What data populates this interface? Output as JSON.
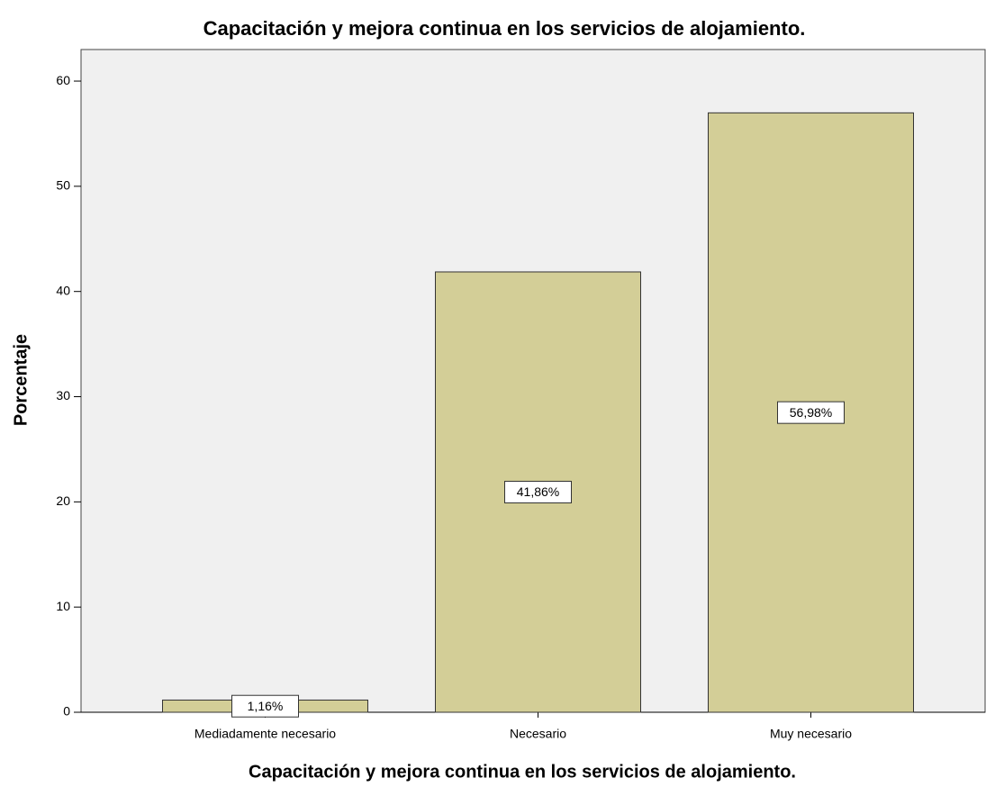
{
  "chart_data": {
    "type": "bar",
    "title": "Capacitación y mejora continua en los servicios de alojamiento.",
    "x_label": "Capacitación y mejora continua en los servicios de alojamiento.",
    "y_label": "Porcentaje",
    "categories": [
      "Mediadamente necesario",
      "Necesario",
      "Muy necesario"
    ],
    "values": [
      1.16,
      41.86,
      56.98
    ],
    "value_labels": [
      "1,16%",
      "41,86%",
      "56,98%"
    ],
    "color": "#d3ce97",
    "ylim": [
      0,
      63
    ],
    "yticks": [
      0,
      10,
      20,
      30,
      40,
      50,
      60
    ],
    "grid": false
  }
}
